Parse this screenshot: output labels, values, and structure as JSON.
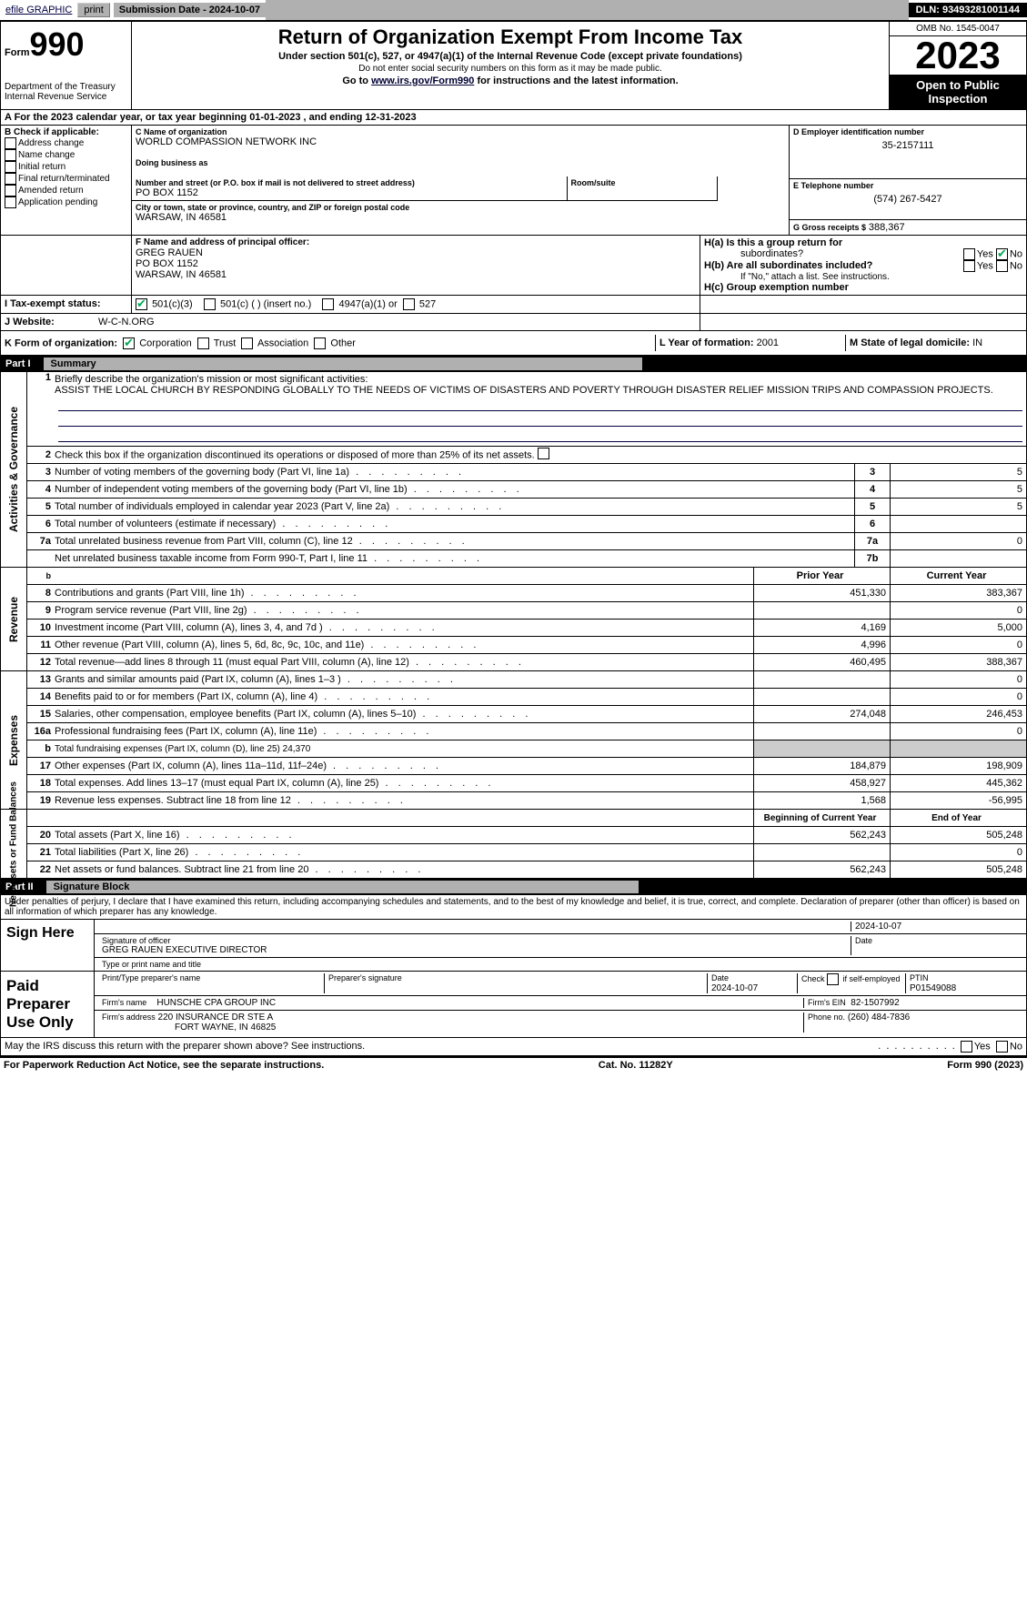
{
  "topbar": {
    "efile": "efile GRAPHIC",
    "print": "print",
    "submission": "Submission Date - 2024-10-07",
    "dln": "DLN: 93493281001144"
  },
  "header": {
    "form_word": "Form",
    "form_num": "990",
    "dept1": "Department of the Treasury",
    "dept2": "Internal Revenue Service",
    "title": "Return of Organization Exempt From Income Tax",
    "sub": "Under section 501(c), 527, or 4947(a)(1) of the Internal Revenue Code (except private foundations)",
    "warn": "Do not enter social security numbers on this form as it may be made public.",
    "goto_pre": "Go to ",
    "goto_link": "www.irs.gov/Form990",
    "goto_post": " for instructions and the latest information.",
    "omb": "OMB No. 1545-0047",
    "year": "2023",
    "inspect": "Open to Public Inspection"
  },
  "lineA": "A   For the 2023 calendar year, or tax year beginning 01-01-2023    , and ending 12-31-2023",
  "boxB": {
    "hdr": "B Check if applicable:",
    "items": [
      "Address change",
      "Name change",
      "Initial return",
      "Final return/terminated",
      "Amended return",
      "Application pending"
    ]
  },
  "boxC": {
    "name_lbl": "C Name of organization",
    "name": "WORLD COMPASSION NETWORK INC",
    "dba_lbl": "Doing business as",
    "street_lbl": "Number and street (or P.O. box if mail is not delivered to street address)",
    "street": "PO BOX 1152",
    "room_lbl": "Room/suite",
    "city_lbl": "City or town, state or province, country, and ZIP or foreign postal code",
    "city": "WARSAW, IN  46581"
  },
  "boxD": {
    "lbl": "D Employer identification number",
    "val": "35-2157111"
  },
  "boxE": {
    "lbl": "E Telephone number",
    "val": "(574) 267-5427"
  },
  "boxG": {
    "lbl": "G Gross receipts $",
    "val": "388,367"
  },
  "boxF": {
    "lbl": "F Name and address of principal officer:",
    "name": "GREG RAUEN",
    "street": "PO BOX 1152",
    "city": "WARSAW, IN  46581"
  },
  "boxH": {
    "a_lbl": "H(a)  Is this a group return for",
    "a_sub": "subordinates?",
    "b_lbl": "H(b)  Are all subordinates included?",
    "b_note": "If \"No,\" attach a list. See instructions.",
    "c_lbl": "H(c)  Group exemption number",
    "yes": "Yes",
    "no": "No"
  },
  "rowI": {
    "lbl": "I     Tax-exempt status:",
    "o1": "501(c)(3)",
    "o2": "501(c) (  ) (insert no.)",
    "o3": "4947(a)(1) or",
    "o4": "527"
  },
  "rowJ": {
    "lbl": "J    Website:",
    "val": "W-C-N.ORG"
  },
  "rowK": {
    "lbl": "K Form of organization:",
    "o1": "Corporation",
    "o2": "Trust",
    "o3": "Association",
    "o4": "Other"
  },
  "rowL": {
    "lbl": "L Year of formation:",
    "val": "2001"
  },
  "rowM": {
    "lbl": "M State of legal domicile:",
    "val": "IN"
  },
  "part1": {
    "pt": "Part I",
    "ttl": "Summary"
  },
  "governance": {
    "tab": "Activities & Governance",
    "l1_lbl": "Briefly describe the organization's mission or most significant activities:",
    "l1_val": "ASSIST THE LOCAL CHURCH BY RESPONDING GLOBALLY TO THE NEEDS OF VICTIMS OF DISASTERS AND POVERTY THROUGH DISASTER RELIEF MISSION TRIPS AND COMPASSION PROJECTS.",
    "l2": "Check this box       if the organization discontinued its operations or disposed of more than 25% of its net assets.",
    "rows": [
      {
        "n": "3",
        "t": "Number of voting members of the governing body (Part VI, line 1a)",
        "k": "3",
        "v": "5"
      },
      {
        "n": "4",
        "t": "Number of independent voting members of the governing body (Part VI, line 1b)",
        "k": "4",
        "v": "5"
      },
      {
        "n": "5",
        "t": "Total number of individuals employed in calendar year 2023 (Part V, line 2a)",
        "k": "5",
        "v": "5"
      },
      {
        "n": "6",
        "t": "Total number of volunteers (estimate if necessary)",
        "k": "6",
        "v": ""
      },
      {
        "n": "7a",
        "t": "Total unrelated business revenue from Part VIII, column (C), line 12",
        "k": "7a",
        "v": "0"
      },
      {
        "n": "",
        "t": "Net unrelated business taxable income from Form 990-T, Part I, line 11",
        "k": "7b",
        "v": ""
      }
    ]
  },
  "revenue": {
    "tab": "Revenue",
    "hdr_prior": "Prior Year",
    "hdr_curr": "Current Year",
    "rows": [
      {
        "n": "8",
        "t": "Contributions and grants (Part VIII, line 1h)",
        "p": "451,330",
        "c": "383,367"
      },
      {
        "n": "9",
        "t": "Program service revenue (Part VIII, line 2g)",
        "p": "",
        "c": "0"
      },
      {
        "n": "10",
        "t": "Investment income (Part VIII, column (A), lines 3, 4, and 7d )",
        "p": "4,169",
        "c": "5,000"
      },
      {
        "n": "11",
        "t": "Other revenue (Part VIII, column (A), lines 5, 6d, 8c, 9c, 10c, and 11e)",
        "p": "4,996",
        "c": "0"
      },
      {
        "n": "12",
        "t": "Total revenue—add lines 8 through 11 (must equal Part VIII, column (A), line 12)",
        "p": "460,495",
        "c": "388,367"
      }
    ]
  },
  "expenses": {
    "tab": "Expenses",
    "rows": [
      {
        "n": "13",
        "t": "Grants and similar amounts paid (Part IX, column (A), lines 1–3 )",
        "p": "",
        "c": "0"
      },
      {
        "n": "14",
        "t": "Benefits paid to or for members (Part IX, column (A), line 4)",
        "p": "",
        "c": "0"
      },
      {
        "n": "15",
        "t": "Salaries, other compensation, employee benefits (Part IX, column (A), lines 5–10)",
        "p": "274,048",
        "c": "246,453"
      },
      {
        "n": "16a",
        "t": "Professional fundraising fees (Part IX, column (A), line 11e)",
        "p": "",
        "c": "0"
      },
      {
        "n": "b",
        "t": "Total fundraising expenses (Part IX, column (D), line 25) 24,370",
        "p": "grey",
        "c": "grey"
      },
      {
        "n": "17",
        "t": "Other expenses (Part IX, column (A), lines 11a–11d, 11f–24e)",
        "p": "184,879",
        "c": "198,909"
      },
      {
        "n": "18",
        "t": "Total expenses. Add lines 13–17 (must equal Part IX, column (A), line 25)",
        "p": "458,927",
        "c": "445,362"
      },
      {
        "n": "19",
        "t": "Revenue less expenses. Subtract line 18 from line 12",
        "p": "1,568",
        "c": "-56,995"
      }
    ]
  },
  "netassets": {
    "tab": "Net Assets or Fund Balances",
    "hdr_beg": "Beginning of Current Year",
    "hdr_end": "End of Year",
    "rows": [
      {
        "n": "20",
        "t": "Total assets (Part X, line 16)",
        "p": "562,243",
        "c": "505,248"
      },
      {
        "n": "21",
        "t": "Total liabilities (Part X, line 26)",
        "p": "",
        "c": "0"
      },
      {
        "n": "22",
        "t": "Net assets or fund balances. Subtract line 21 from line 20",
        "p": "562,243",
        "c": "505,248"
      }
    ]
  },
  "part2": {
    "pt": "Part II",
    "ttl": "Signature Block"
  },
  "perjury": "Under penalties of perjury, I declare that I have examined this return, including accompanying schedules and statements, and to the best of my knowledge and belief, it is true, correct, and complete. Declaration of preparer (other than officer) is based on all information of which preparer has any knowledge.",
  "sign": {
    "here": "Sign Here",
    "sig_lbl": "Signature of officer",
    "sig_name": "GREG RAUEN  EXECUTIVE DIRECTOR",
    "type_lbl": "Type or print name and title",
    "date": "2024-10-07",
    "date_lbl": "Date"
  },
  "paid": {
    "here": "Paid Preparer Use Only",
    "name_lbl": "Print/Type preparer's name",
    "sig_lbl": "Preparer's signature",
    "date_lbl": "Date",
    "date": "2024-10-07",
    "self_lbl": "Check         if self-employed",
    "ptin_lbl": "PTIN",
    "ptin": "P01549088",
    "firm_lbl": "Firm's name",
    "firm": "HUNSCHE CPA GROUP INC",
    "ein_lbl": "Firm's EIN",
    "ein": "82-1507992",
    "addr_lbl": "Firm's address",
    "addr1": "220 INSURANCE DR STE A",
    "addr2": "FORT WAYNE, IN  46825",
    "phone_lbl": "Phone no.",
    "phone": "(260) 484-7836"
  },
  "discuss": "May the IRS discuss this return with the preparer shown above? See instructions.",
  "footer": {
    "left": "For Paperwork Reduction Act Notice, see the separate instructions.",
    "mid": "Cat. No. 11282Y",
    "right": "Form 990 (2023)"
  }
}
